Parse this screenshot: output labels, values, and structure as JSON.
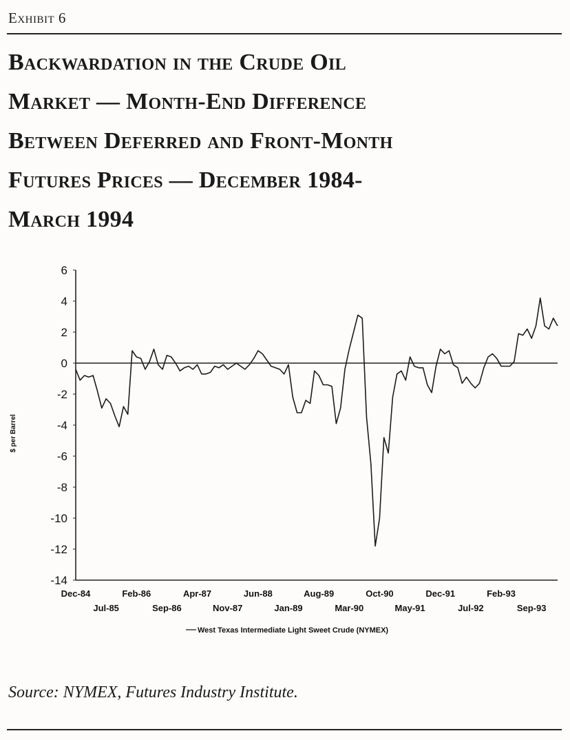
{
  "header": {
    "exhibit": "Exhibit 6",
    "title_lines": [
      "Backwardation in the Crude Oil",
      "Market — Month-End Difference",
      "Between Deferred and Front-Month",
      "Futures Prices — December 1984-",
      "March 1994"
    ]
  },
  "footer": {
    "source": "Source: NYMEX, Futures Industry Institute."
  },
  "chart_data": {
    "type": "line",
    "title": "",
    "xlabel": "",
    "ylabel": "$ per Barrel",
    "ylim": [
      -14,
      6
    ],
    "yticks": [
      6,
      4,
      2,
      0,
      -2,
      -4,
      -6,
      -8,
      -10,
      -12,
      -14
    ],
    "xlim": [
      "Dec-84",
      "Mar-94"
    ],
    "xticks_upper": [
      "Dec-84",
      "Feb-86",
      "Apr-87",
      "Jun-88",
      "Aug-89",
      "Oct-90",
      "Dec-91",
      "Feb-93"
    ],
    "xticks_lower": [
      "Jul-85",
      "Sep-86",
      "Nov-87",
      "Jan-89",
      "Mar-90",
      "May-91",
      "Jul-92",
      "Sep-93"
    ],
    "zero_line": true,
    "grid": false,
    "legend_position": "bottom",
    "series": [
      {
        "name": "West Texas Intermediate Light Sweet Crude (NYMEX)",
        "x_start": "Dec-84",
        "frequency": "monthly",
        "values": [
          -0.4,
          -1.1,
          -0.8,
          -0.9,
          -0.8,
          -1.8,
          -2.9,
          -2.3,
          -2.6,
          -3.4,
          -4.1,
          -2.8,
          -3.3,
          0.8,
          0.4,
          0.3,
          -0.4,
          0.1,
          0.9,
          -0.1,
          -0.4,
          0.5,
          0.4,
          0.0,
          -0.5,
          -0.3,
          -0.2,
          -0.4,
          -0.1,
          -0.7,
          -0.7,
          -0.6,
          -0.2,
          -0.3,
          -0.1,
          -0.4,
          -0.2,
          0.0,
          -0.2,
          -0.4,
          -0.1,
          0.3,
          0.8,
          0.6,
          0.2,
          -0.2,
          -0.3,
          -0.4,
          -0.7,
          -0.1,
          -2.2,
          -3.2,
          -3.2,
          -2.4,
          -2.6,
          -0.5,
          -0.8,
          -1.4,
          -1.4,
          -1.5,
          -3.9,
          -2.9,
          -0.4,
          0.9,
          2.0,
          3.1,
          2.9,
          -3.5,
          -6.5,
          -11.8,
          -10.0,
          -4.8,
          -5.8,
          -2.2,
          -0.7,
          -0.5,
          -1.1,
          0.4,
          -0.2,
          -0.3,
          -0.3,
          -1.4,
          -1.9,
          -0.2,
          0.9,
          0.6,
          0.8,
          -0.1,
          -0.3,
          -1.3,
          -0.9,
          -1.3,
          -1.6,
          -1.3,
          -0.3,
          0.4,
          0.6,
          0.3,
          -0.2,
          -0.2,
          -0.2,
          0.1,
          1.9,
          1.8,
          2.2,
          1.6,
          2.4,
          4.2,
          2.4,
          2.2,
          2.9,
          2.4
        ]
      }
    ]
  }
}
